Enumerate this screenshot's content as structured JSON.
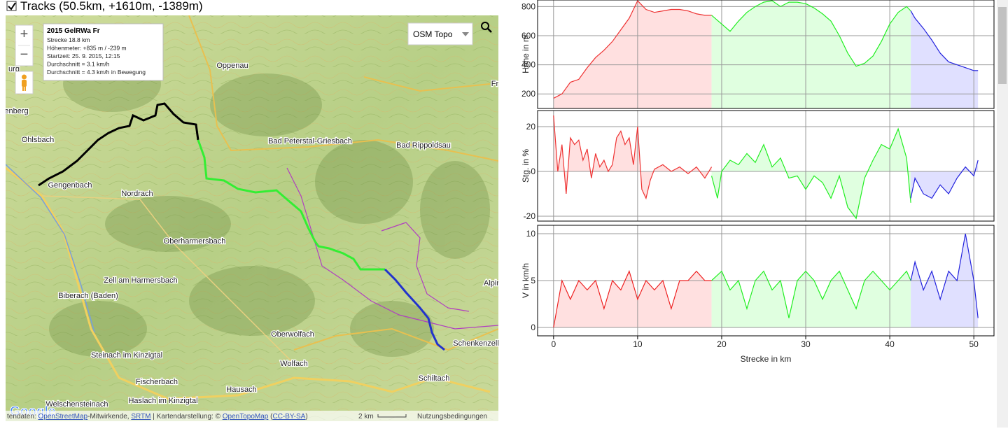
{
  "header": {
    "checkbox_label": "Tracks (50.5km, +1610m, -1389m)"
  },
  "map": {
    "zoom_in": "+",
    "zoom_out": "−",
    "layer_select": "OSM Topo",
    "logo": "Google",
    "info": {
      "title": "2015 GelRWa Fr",
      "lines": [
        "Strecke 18.8 km",
        "Höhenmeter: +835 m / -239 m",
        "Startzeit: 25. 9. 2015, 12:15",
        "Durchschnitt = 3.1 km/h",
        "Durchschnitt = 4.3 km/h in Bewegung"
      ]
    },
    "places": [
      "Oppenau",
      "Bad Peterstal-Griesbach",
      "Bad Rippoldsau",
      "Ohlsbach",
      "Gengenbach",
      "Nordrach",
      "Oberharmersbach",
      "Zell am Harmersbach",
      "Biberach (Baden)",
      "Oberwolfach",
      "Schenkenzell",
      "Wolfach",
      "Steinach im Kinzigtal",
      "Schiltach",
      "Fischerbach",
      "Hausach",
      "Haslach im Kinzigtal",
      "Fr",
      "Alpir",
      "urg",
      "tenberg",
      "Welschensteinach"
    ],
    "attribution": [
      "tendaten: ",
      "OpenStreetMap",
      "-Mitwirkende, ",
      "SRTM",
      " | Kartendarstellung: © ",
      "OpenTopoMap",
      " (",
      "CC-BY-SA",
      ")"
    ],
    "scale": "2 km",
    "terms": "Nutzungsbedingungen"
  },
  "chart_data": [
    {
      "type": "area",
      "y_label": "Höhe in m",
      "xlim": [
        -1.9,
        52.4
      ],
      "xticks": [
        0,
        10,
        20,
        30,
        40,
        50
      ],
      "ylim": [
        100,
        845
      ],
      "yticks": [
        200,
        400,
        600,
        800
      ],
      "grid": true,
      "series": [
        {
          "color": "#ee3333",
          "fill": "#ffe0e0",
          "x": [
            0,
            1,
            2,
            3,
            4,
            5,
            6,
            7,
            8,
            9,
            10,
            11,
            12,
            13,
            14,
            15,
            16,
            17,
            18,
            18.8
          ],
          "values": [
            170,
            200,
            280,
            300,
            380,
            450,
            500,
            560,
            640,
            720,
            840,
            780,
            760,
            770,
            780,
            780,
            770,
            750,
            740,
            740
          ]
        },
        {
          "color": "#22ee22",
          "fill": "#e0ffe0",
          "x": [
            18.8,
            20,
            21,
            22,
            23,
            24,
            25,
            26,
            27,
            28,
            29,
            30,
            31,
            32,
            33,
            34,
            35,
            36,
            37,
            38,
            39,
            40,
            41,
            42,
            42.5
          ],
          "values": [
            740,
            680,
            630,
            700,
            760,
            800,
            830,
            840,
            800,
            830,
            830,
            820,
            790,
            750,
            700,
            600,
            480,
            390,
            410,
            460,
            560,
            680,
            760,
            800,
            770
          ]
        },
        {
          "color": "#2222dd",
          "fill": "#e0e0ff",
          "x": [
            42.5,
            43,
            44,
            45,
            46,
            47,
            48,
            49,
            50,
            50.5
          ],
          "values": [
            770,
            720,
            650,
            570,
            480,
            420,
            400,
            380,
            360,
            360
          ]
        }
      ]
    },
    {
      "type": "area",
      "y_label": "Stg. in %",
      "xlim": [
        -1.9,
        52.4
      ],
      "xticks": [
        0,
        10,
        20,
        30,
        40,
        50
      ],
      "ylim": [
        -22.2,
        27.2
      ],
      "yticks": [
        -20,
        0,
        20
      ],
      "grid": true,
      "series": [
        {
          "color": "#ee3333",
          "fill": "#ffe0e0",
          "x": [
            0,
            0.5,
            1,
            1.5,
            2,
            2.5,
            3,
            3.5,
            4,
            4.5,
            5,
            5.5,
            6,
            6.5,
            7,
            7.5,
            8,
            8.5,
            9,
            9.5,
            10,
            10.5,
            11,
            11.5,
            12,
            13,
            14,
            15,
            16,
            17,
            18,
            18.8
          ],
          "values": [
            25,
            0,
            12,
            -10,
            15,
            12,
            14,
            5,
            10,
            -3,
            8,
            2,
            5,
            0,
            3,
            15,
            18,
            12,
            15,
            3,
            20,
            -8,
            -12,
            -4,
            1,
            3,
            0,
            2,
            -1,
            2,
            -3,
            2
          ]
        },
        {
          "color": "#22ee22",
          "fill": "#e0ffe0",
          "x": [
            18.8,
            19.5,
            20,
            21,
            22,
            23,
            24,
            25,
            26,
            27,
            28,
            29,
            30,
            31,
            32,
            33,
            34,
            35,
            36,
            36.5,
            37,
            38,
            39,
            40,
            41,
            42,
            42.5
          ],
          "values": [
            -2,
            -12,
            0,
            5,
            3,
            8,
            4,
            12,
            2,
            6,
            -3,
            -2,
            -8,
            -2,
            -5,
            -12,
            -2,
            -16,
            -21,
            -12,
            -3,
            5,
            12,
            10,
            19,
            6,
            -14
          ]
        },
        {
          "color": "#2222dd",
          "fill": "#e0e0ff",
          "x": [
            42.5,
            43,
            44,
            45,
            46,
            47,
            48,
            49,
            50,
            50.5
          ],
          "values": [
            -12,
            -3,
            -10,
            -12,
            -6,
            -10,
            -3,
            2,
            -2,
            5
          ]
        }
      ]
    },
    {
      "type": "area",
      "y_label": "V in km/h",
      "x_label": "Strecke in km",
      "xlim": [
        -1.9,
        52.4
      ],
      "xticks": [
        0,
        10,
        20,
        30,
        40,
        50
      ],
      "ylim": [
        -0.9,
        10.9
      ],
      "yticks": [
        0,
        5,
        10
      ],
      "grid": true,
      "series": [
        {
          "color": "#ee2222",
          "fill": "#ffe0e0",
          "x": [
            0,
            1,
            2,
            3,
            4,
            5,
            6,
            7,
            8,
            9,
            10,
            11,
            12,
            13,
            14,
            15,
            16,
            17,
            18,
            18.8
          ],
          "values": [
            0,
            5,
            3,
            5,
            4,
            5,
            2,
            5,
            4,
            6,
            3,
            5,
            4,
            5,
            2,
            5,
            5,
            6,
            5,
            5
          ]
        },
        {
          "color": "#22ee22",
          "fill": "#e0ffe0",
          "x": [
            18.8,
            20,
            21,
            22,
            23,
            24,
            25,
            26,
            27,
            28,
            29,
            30,
            31,
            32,
            33,
            34,
            35,
            36,
            37,
            38,
            39,
            40,
            41,
            42,
            42.5
          ],
          "values": [
            5,
            6,
            4,
            5,
            2,
            5,
            6,
            4,
            5,
            1,
            5,
            6,
            5,
            3,
            5,
            6,
            4,
            2,
            5,
            6,
            5,
            4,
            5,
            6,
            5
          ]
        },
        {
          "color": "#2222dd",
          "fill": "#e0e0ff",
          "x": [
            42.5,
            43,
            44,
            45,
            46,
            47,
            48,
            49,
            50,
            50.5
          ],
          "values": [
            5,
            7,
            4,
            6,
            3,
            6,
            5,
            10,
            5,
            1
          ]
        }
      ]
    }
  ]
}
